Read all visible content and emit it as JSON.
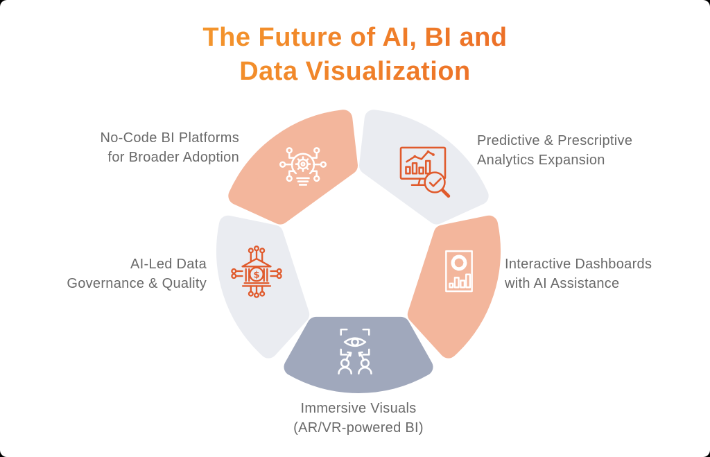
{
  "title": {
    "line1": "The Future of AI, BI and",
    "line2": "Data Visualization"
  },
  "colors": {
    "title_gradient_start": "#F7A72E",
    "title_gradient_end": "#EC6E27",
    "salmon": "#F3B69C",
    "light_gray": "#EAECF1",
    "blue_gray": "#A0A8BC",
    "icon_orange": "#E05A2C",
    "icon_white": "#FFFFFF",
    "label_text": "#696969",
    "card_background": "#FFFFFF"
  },
  "wheel": {
    "segments": [
      {
        "id": "no-code-bi",
        "angle": 234,
        "color": "#F3B69C",
        "icon": "network-bulb-gear-icon",
        "icon_color": "#FFFFFF",
        "line1": "No-Code BI Platforms",
        "line2": "for Broader Adoption"
      },
      {
        "id": "predictive-analytics",
        "angle": 306,
        "color": "#EAECF1",
        "icon": "monitor-analytics-magnifier-icon",
        "icon_color": "#E05A2C",
        "line1": "Predictive & Prescriptive",
        "line2": "Analytics Expansion"
      },
      {
        "id": "interactive-dashboards",
        "angle": 18,
        "color": "#F3B69C",
        "icon": "dashboard-charts-icon",
        "icon_color": "#FFFFFF",
        "line1": "Interactive Dashboards",
        "line2": "with AI Assistance"
      },
      {
        "id": "immersive-visuals",
        "angle": 90,
        "color": "#A0A8BC",
        "icon": "ar-vr-eye-people-icon",
        "icon_color": "#FFFFFF",
        "line1": "Immersive Visuals",
        "line2": "(AR/VR-powered BI)"
      },
      {
        "id": "ai-data-governance",
        "angle": 162,
        "color": "#EAECF1",
        "icon": "bank-circuit-dollar-icon",
        "icon_color": "#E05A2C",
        "line1": "AI-Led Data",
        "line2": "Governance & Quality"
      }
    ]
  }
}
